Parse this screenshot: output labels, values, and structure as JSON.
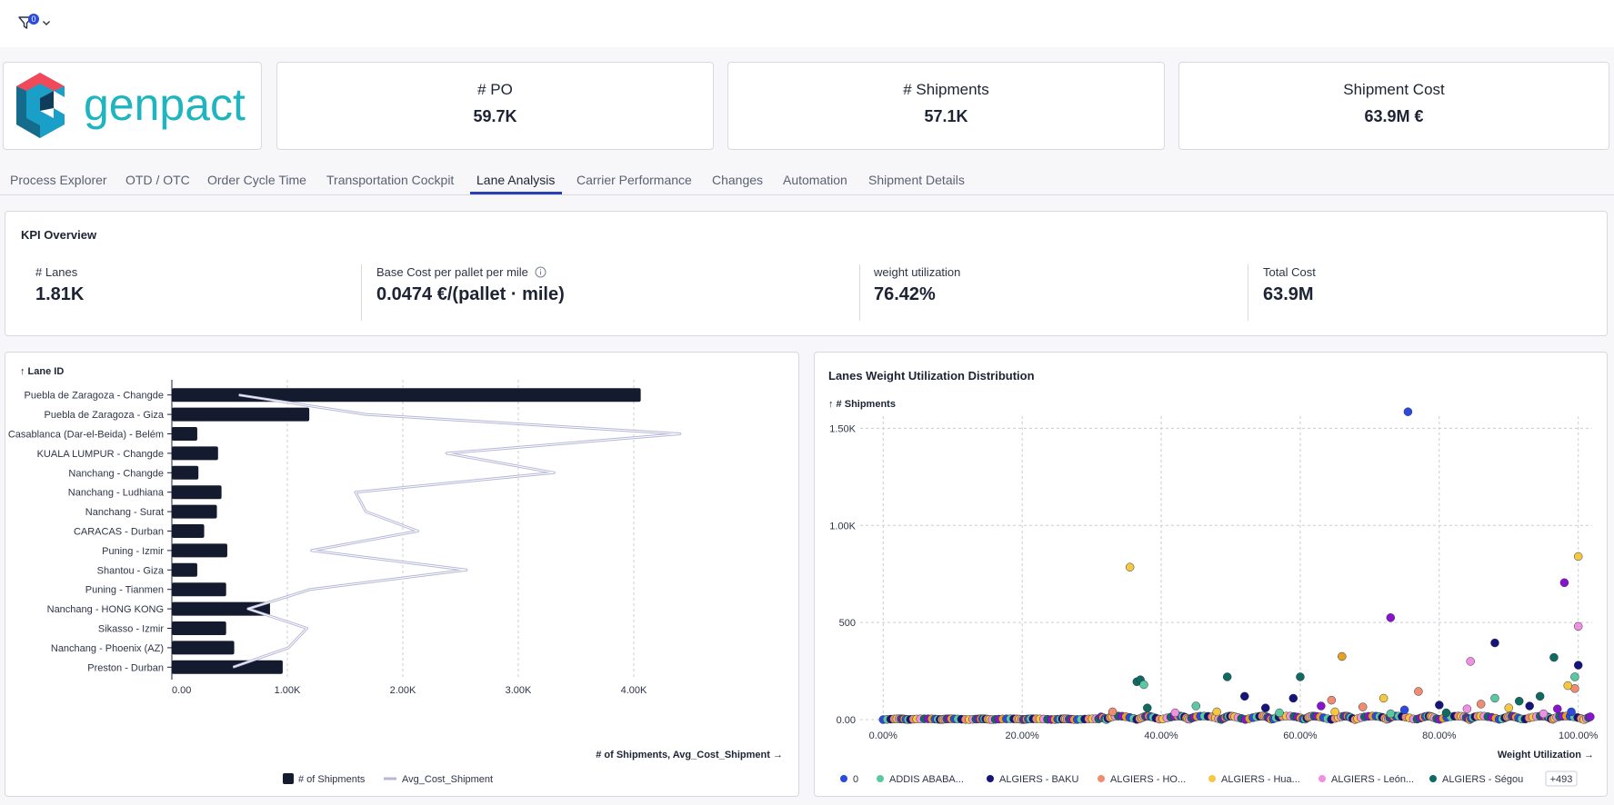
{
  "filter": {
    "badge_count": "0"
  },
  "logo": {
    "text": "genpact"
  },
  "kpis": [
    {
      "label": "# PO",
      "value": "59.7K"
    },
    {
      "label": "# Shipments",
      "value": "57.1K"
    },
    {
      "label": "Shipment Cost",
      "value": "63.9M €"
    }
  ],
  "tabs": [
    {
      "label": "Process Explorer",
      "active": false
    },
    {
      "label": "OTD / OTC",
      "active": false
    },
    {
      "label": "Order Cycle Time",
      "active": false
    },
    {
      "label": "Transportation Cockpit",
      "active": false
    },
    {
      "label": "Lane Analysis",
      "active": true
    },
    {
      "label": "Carrier Performance",
      "active": false
    },
    {
      "label": "Changes",
      "active": false
    },
    {
      "label": "Automation",
      "active": false
    },
    {
      "label": "Shipment Details",
      "active": false
    }
  ],
  "kpi_overview": {
    "title": "KPI Overview",
    "metrics": [
      {
        "label": "# Lanes",
        "value": "1.81K"
      },
      {
        "label": "Base Cost per pallet per mile",
        "value": "0.0474 €/(pallet · mile)"
      },
      {
        "label": "weight utilization",
        "value": "76.42%"
      },
      {
        "label": "Total Cost",
        "value": "63.9M"
      }
    ]
  },
  "colors": {
    "accent": "#2b3fb5",
    "bar": "#141b2e",
    "line": "#b5b7d9"
  },
  "chart_data": [
    {
      "type": "bar",
      "sort_label": "↑ Lane ID",
      "categories": [
        "Puebla de Zaragoza - Changde",
        "Puebla de Zaragoza - Giza",
        "Casablanca (Dar-el-Beida) - Belém",
        "KUALA LUMPUR - Changde",
        "Nanchang - Changde",
        "Nanchang - Ludhiana",
        "Nanchang - Surat",
        "CARACAS - Durban",
        "Puning - Izmir",
        "Shantou - Giza",
        "Puning - Tianmen",
        "Nanchang - HONG KONG",
        "Sikasso - Izmir",
        "Nanchang - Phoenix (AZ)",
        "Preston - Durban"
      ],
      "series": [
        {
          "name": "# of Shipments",
          "type": "bar",
          "values": [
            4060,
            1190,
            220,
            400,
            230,
            430,
            390,
            280,
            480,
            220,
            470,
            850,
            470,
            540,
            960
          ]
        },
        {
          "name": "Avg_Cost_Shipment",
          "type": "line",
          "values": [
            580,
            1680,
            4400,
            2380,
            3310,
            1590,
            1680,
            2130,
            1210,
            2550,
            1200,
            660,
            1170,
            1010,
            530
          ]
        }
      ],
      "xlabel": "# of Shipments, Avg_Cost_Shipment →",
      "xlim": [
        0,
        4400
      ],
      "xticks": [
        "0.00",
        "1.00K",
        "2.00K",
        "3.00K",
        "4.00K"
      ],
      "xtick_values": [
        0,
        1000,
        2000,
        3000,
        4000
      ],
      "grid": true,
      "legend_placement": "bottom"
    },
    {
      "type": "scatter",
      "title": "Lanes Weight Utilization Distribution",
      "ylabel": "↑ # Shipments",
      "xlabel": "Weight Utilization →",
      "xlim": [
        -0.02,
        1.02
      ],
      "ylim": [
        0,
        1600
      ],
      "xticks": [
        "0.00%",
        "20.00%",
        "40.00%",
        "60.00%",
        "80.00%",
        "100.00%"
      ],
      "xtick_values": [
        0,
        0.2,
        0.4,
        0.6,
        0.8,
        1.0
      ],
      "yticks": [
        "0.00",
        "500",
        "1.00K",
        "1.50K"
      ],
      "ytick_values": [
        0,
        500,
        1000,
        1500
      ],
      "grid": true,
      "legend_placement": "bottom",
      "legend": [
        {
          "name": "0",
          "color": "#2b4ae0"
        },
        {
          "name": "ADDIS ABABA...",
          "color": "#5bc8a0"
        },
        {
          "name": "ALGIERS - BAKU",
          "color": "#14147a"
        },
        {
          "name": "ALGIERS - HO...",
          "color": "#f28c70"
        },
        {
          "name": "ALGIERS - Hua...",
          "color": "#f5c842"
        },
        {
          "name": "ALGIERS - León...",
          "color": "#f090e0"
        },
        {
          "name": "ALGIERS - Ségou",
          "color": "#0f6b60"
        }
      ],
      "legend_more": "+493",
      "points": [
        {
          "x": 0.755,
          "y": 1585,
          "color": "#2b4ae0"
        },
        {
          "x": 0.355,
          "y": 785,
          "color": "#f5c842"
        },
        {
          "x": 1.0,
          "y": 840,
          "color": "#f5c842"
        },
        {
          "x": 0.98,
          "y": 705,
          "color": "#8a12d0"
        },
        {
          "x": 0.73,
          "y": 525,
          "color": "#8a12d0"
        },
        {
          "x": 1.0,
          "y": 480,
          "color": "#f090e0"
        },
        {
          "x": 0.88,
          "y": 395,
          "color": "#14147a"
        },
        {
          "x": 0.965,
          "y": 320,
          "color": "#0f6b60"
        },
        {
          "x": 0.845,
          "y": 300,
          "color": "#f090e0"
        },
        {
          "x": 0.66,
          "y": 325,
          "color": "#e8a020"
        },
        {
          "x": 1.0,
          "y": 280,
          "color": "#14147a"
        },
        {
          "x": 0.365,
          "y": 195,
          "color": "#0f6b60"
        },
        {
          "x": 0.37,
          "y": 205,
          "color": "#0f6b60"
        },
        {
          "x": 0.375,
          "y": 180,
          "color": "#5bc8a0"
        },
        {
          "x": 0.495,
          "y": 220,
          "color": "#0f6b60"
        },
        {
          "x": 0.6,
          "y": 220,
          "color": "#0f6b60"
        },
        {
          "x": 0.995,
          "y": 220,
          "color": "#5bc8a0"
        },
        {
          "x": 0.995,
          "y": 160,
          "color": "#f28c70"
        },
        {
          "x": 0.985,
          "y": 175,
          "color": "#f5c842"
        },
        {
          "x": 0.77,
          "y": 145,
          "color": "#f28c70"
        },
        {
          "x": 0.945,
          "y": 120,
          "color": "#0f6b60"
        },
        {
          "x": 0.52,
          "y": 120,
          "color": "#14147a"
        },
        {
          "x": 0.72,
          "y": 110,
          "color": "#f5c842"
        },
        {
          "x": 0.88,
          "y": 110,
          "color": "#5bc8a0"
        },
        {
          "x": 0.59,
          "y": 110,
          "color": "#14147a"
        },
        {
          "x": 0.645,
          "y": 100,
          "color": "#f28c70"
        },
        {
          "x": 0.915,
          "y": 95,
          "color": "#0f6b60"
        },
        {
          "x": 0.38,
          "y": 60,
          "color": "#0f6b60"
        },
        {
          "x": 0.45,
          "y": 70,
          "color": "#5bc8a0"
        },
        {
          "x": 0.55,
          "y": 60,
          "color": "#14147a"
        },
        {
          "x": 0.63,
          "y": 70,
          "color": "#8a12d0"
        },
        {
          "x": 0.69,
          "y": 65,
          "color": "#f28c70"
        },
        {
          "x": 0.75,
          "y": 50,
          "color": "#2b4ae0"
        },
        {
          "x": 0.8,
          "y": 75,
          "color": "#14147a"
        },
        {
          "x": 0.84,
          "y": 55,
          "color": "#f090e0"
        },
        {
          "x": 0.86,
          "y": 80,
          "color": "#f28c70"
        },
        {
          "x": 0.9,
          "y": 60,
          "color": "#f5c842"
        },
        {
          "x": 0.93,
          "y": 70,
          "color": "#14147a"
        },
        {
          "x": 0.97,
          "y": 55,
          "color": "#8a12d0"
        },
        {
          "x": 0.33,
          "y": 40,
          "color": "#f28c70"
        },
        {
          "x": 0.42,
          "y": 35,
          "color": "#f090e0"
        },
        {
          "x": 0.48,
          "y": 40,
          "color": "#f5c842"
        },
        {
          "x": 0.57,
          "y": 35,
          "color": "#5bc8a0"
        },
        {
          "x": 0.65,
          "y": 40,
          "color": "#f5c842"
        },
        {
          "x": 0.73,
          "y": 30,
          "color": "#5bc8a0"
        },
        {
          "x": 0.81,
          "y": 35,
          "color": "#0f6b60"
        },
        {
          "x": 0.95,
          "y": 30,
          "color": "#f090e0"
        },
        {
          "x": 0.99,
          "y": 40,
          "color": "#2b4ae0"
        }
      ],
      "baseline_cluster": {
        "y": 0,
        "x_from": 0.0,
        "x_to": 1.02,
        "count": 260
      }
    }
  ]
}
